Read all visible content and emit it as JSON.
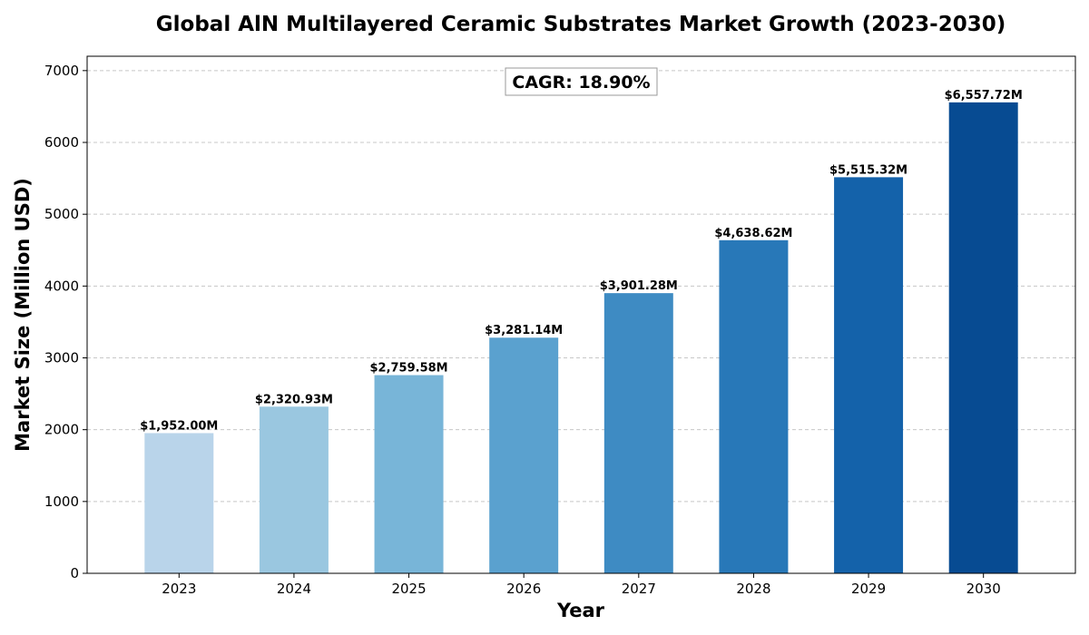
{
  "chart_data": {
    "type": "bar",
    "title": "Global AlN Multilayered Ceramic Substrates Market Growth (2023-2030)",
    "xlabel": "Year",
    "ylabel": "Market Size (Million USD)",
    "categories": [
      "2023",
      "2024",
      "2025",
      "2026",
      "2027",
      "2028",
      "2029",
      "2030"
    ],
    "values": [
      1952.0,
      2320.93,
      2759.58,
      3281.14,
      3901.28,
      4638.62,
      5515.32,
      6557.72
    ],
    "value_labels": [
      "$1,952.00M",
      "$2,320.93M",
      "$2,759.58M",
      "$3,281.14M",
      "$3,901.28M",
      "$4,638.62M",
      "$5,515.32M",
      "$6,557.72M"
    ],
    "colors": [
      "#b9d4ea",
      "#9ac7e0",
      "#78b5d8",
      "#5aa1cf",
      "#3e8bc3",
      "#2878b8",
      "#1462aa",
      "#074b92"
    ],
    "ylim": [
      0,
      7200
    ],
    "yticks": [
      0,
      1000,
      2000,
      3000,
      4000,
      5000,
      6000,
      7000
    ],
    "grid": true,
    "annotation": "CAGR: 18.90%"
  }
}
